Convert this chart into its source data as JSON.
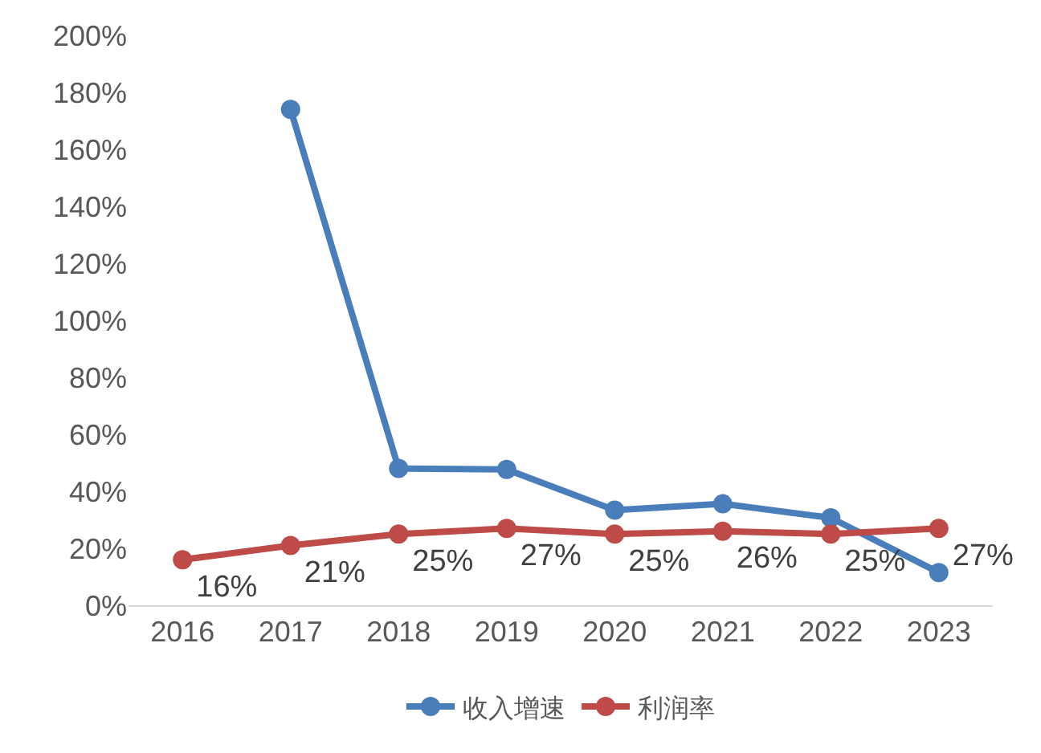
{
  "chart_data": {
    "type": "line",
    "categories": [
      "2016",
      "2017",
      "2018",
      "2019",
      "2020",
      "2021",
      "2022",
      "2023"
    ],
    "series": [
      {
        "name": "收入增速",
        "color": "#4a7ebb",
        "values": [
          null,
          174,
          48,
          47.7,
          33.4,
          35.6,
          30.7,
          11.5
        ]
      },
      {
        "name": "利润率",
        "color": "#be4b48",
        "values": [
          16,
          21,
          25,
          27,
          25,
          26,
          25,
          27
        ],
        "value_labels": [
          "16%",
          "21%",
          "25%",
          "27%",
          "25%",
          "26%",
          "25%",
          "27%"
        ]
      }
    ],
    "ylim": [
      0,
      200
    ],
    "yticks": [
      {
        "value": 0,
        "label": "0%"
      },
      {
        "value": 20,
        "label": "20%"
      },
      {
        "value": 40,
        "label": "40%"
      },
      {
        "value": 60,
        "label": "60%"
      },
      {
        "value": 80,
        "label": "80%"
      },
      {
        "value": 100,
        "label": "100%"
      },
      {
        "value": 120,
        "label": "120%"
      },
      {
        "value": 140,
        "label": "140%"
      },
      {
        "value": 160,
        "label": "160%"
      },
      {
        "value": 180,
        "label": "180%"
      },
      {
        "value": 200,
        "label": "200%"
      }
    ],
    "grid": false,
    "legend": "bottom",
    "marker": "circle",
    "line_style": "solid"
  }
}
